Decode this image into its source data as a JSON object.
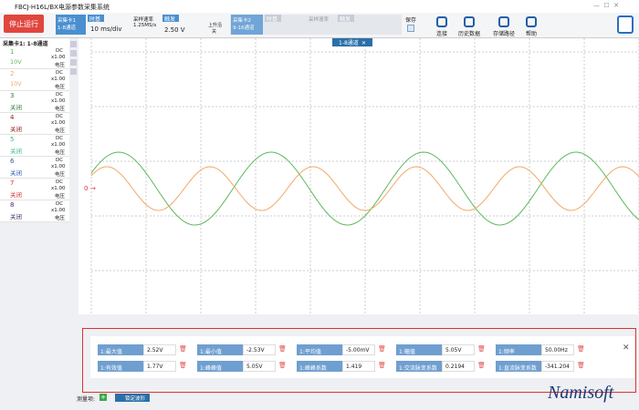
{
  "title_bar": {
    "title": "FBCJ-H16L/BX电源参数采集系统"
  },
  "toolbar": {
    "stop_button": "停止运行",
    "card1": {
      "name": "采集卡1",
      "channels": "1-8通道",
      "timebase_label": "时基",
      "timebase": "10 ms/div",
      "rate_label": "采样速率",
      "rate": "1.25MS/s",
      "trigger_label": "触发",
      "trigger": "2.50 V",
      "trigger_edge": "上升沿",
      "trigger_mode": "关"
    },
    "card2": {
      "name": "采集卡2",
      "channels": "9-16通道",
      "timebase_label": "时基",
      "rate_label": "采样速率",
      "trigger_label": "触发"
    },
    "save": "保存",
    "buttons": [
      "连接",
      "历史数据",
      "存储路径",
      "帮助"
    ]
  },
  "channel_panel": {
    "header": "采集卡1: 1-8通道",
    "channels": [
      {
        "id": "1",
        "coupling": "DC",
        "scale": "x1.00",
        "unit": "电压",
        "range": "10V",
        "color": "#5cb85c"
      },
      {
        "id": "2",
        "coupling": "DC",
        "scale": "x1.00",
        "unit": "电压",
        "range": "10V",
        "color": "#f0a868"
      },
      {
        "id": "3",
        "coupling": "DC",
        "scale": "x1.00",
        "unit": "电压",
        "range": "关闭",
        "color": "#2e7d32"
      },
      {
        "id": "4",
        "coupling": "DC",
        "scale": "x1.00",
        "unit": "电压",
        "range": "关闭",
        "color": "#8b1a1a"
      },
      {
        "id": "5",
        "coupling": "DC",
        "scale": "x1.00",
        "unit": "电压",
        "range": "关闭",
        "color": "#3cb88c"
      },
      {
        "id": "6",
        "coupling": "DC",
        "scale": "x1.00",
        "unit": "电压",
        "range": "关闭",
        "color": "#2a5db0"
      },
      {
        "id": "7",
        "coupling": "DC",
        "scale": "x1.00",
        "unit": "电压",
        "range": "关闭",
        "color": "#e03030"
      },
      {
        "id": "8",
        "coupling": "DC",
        "scale": "x1.00",
        "unit": "电压",
        "range": "关闭",
        "color": "#4a2a6a"
      }
    ]
  },
  "plot": {
    "tab": "1-8通道",
    "zero_marker": "0"
  },
  "measurements": [
    {
      "label": "1:最大值",
      "value": "2.52V"
    },
    {
      "label": "1:最小值",
      "value": "-2.53V"
    },
    {
      "label": "1:平均值",
      "value": "-5.00mV"
    },
    {
      "label": "1:幅值",
      "value": "5.05V"
    },
    {
      "label": "1:频率",
      "value": "50.00Hz"
    },
    {
      "label": "1:有效值",
      "value": "1.77V"
    },
    {
      "label": "1:峰峰值",
      "value": "5.05V"
    },
    {
      "label": "1:峰峰系数",
      "value": "1.419"
    },
    {
      "label": "1:交流脉变系数",
      "value": "0.2194"
    },
    {
      "label": "1:直流脉变系数",
      "value": "-341.204"
    }
  ],
  "footer": {
    "measure_label": "测量项:",
    "lock_button": "锁定波形"
  },
  "watermark": "Namisoft"
}
